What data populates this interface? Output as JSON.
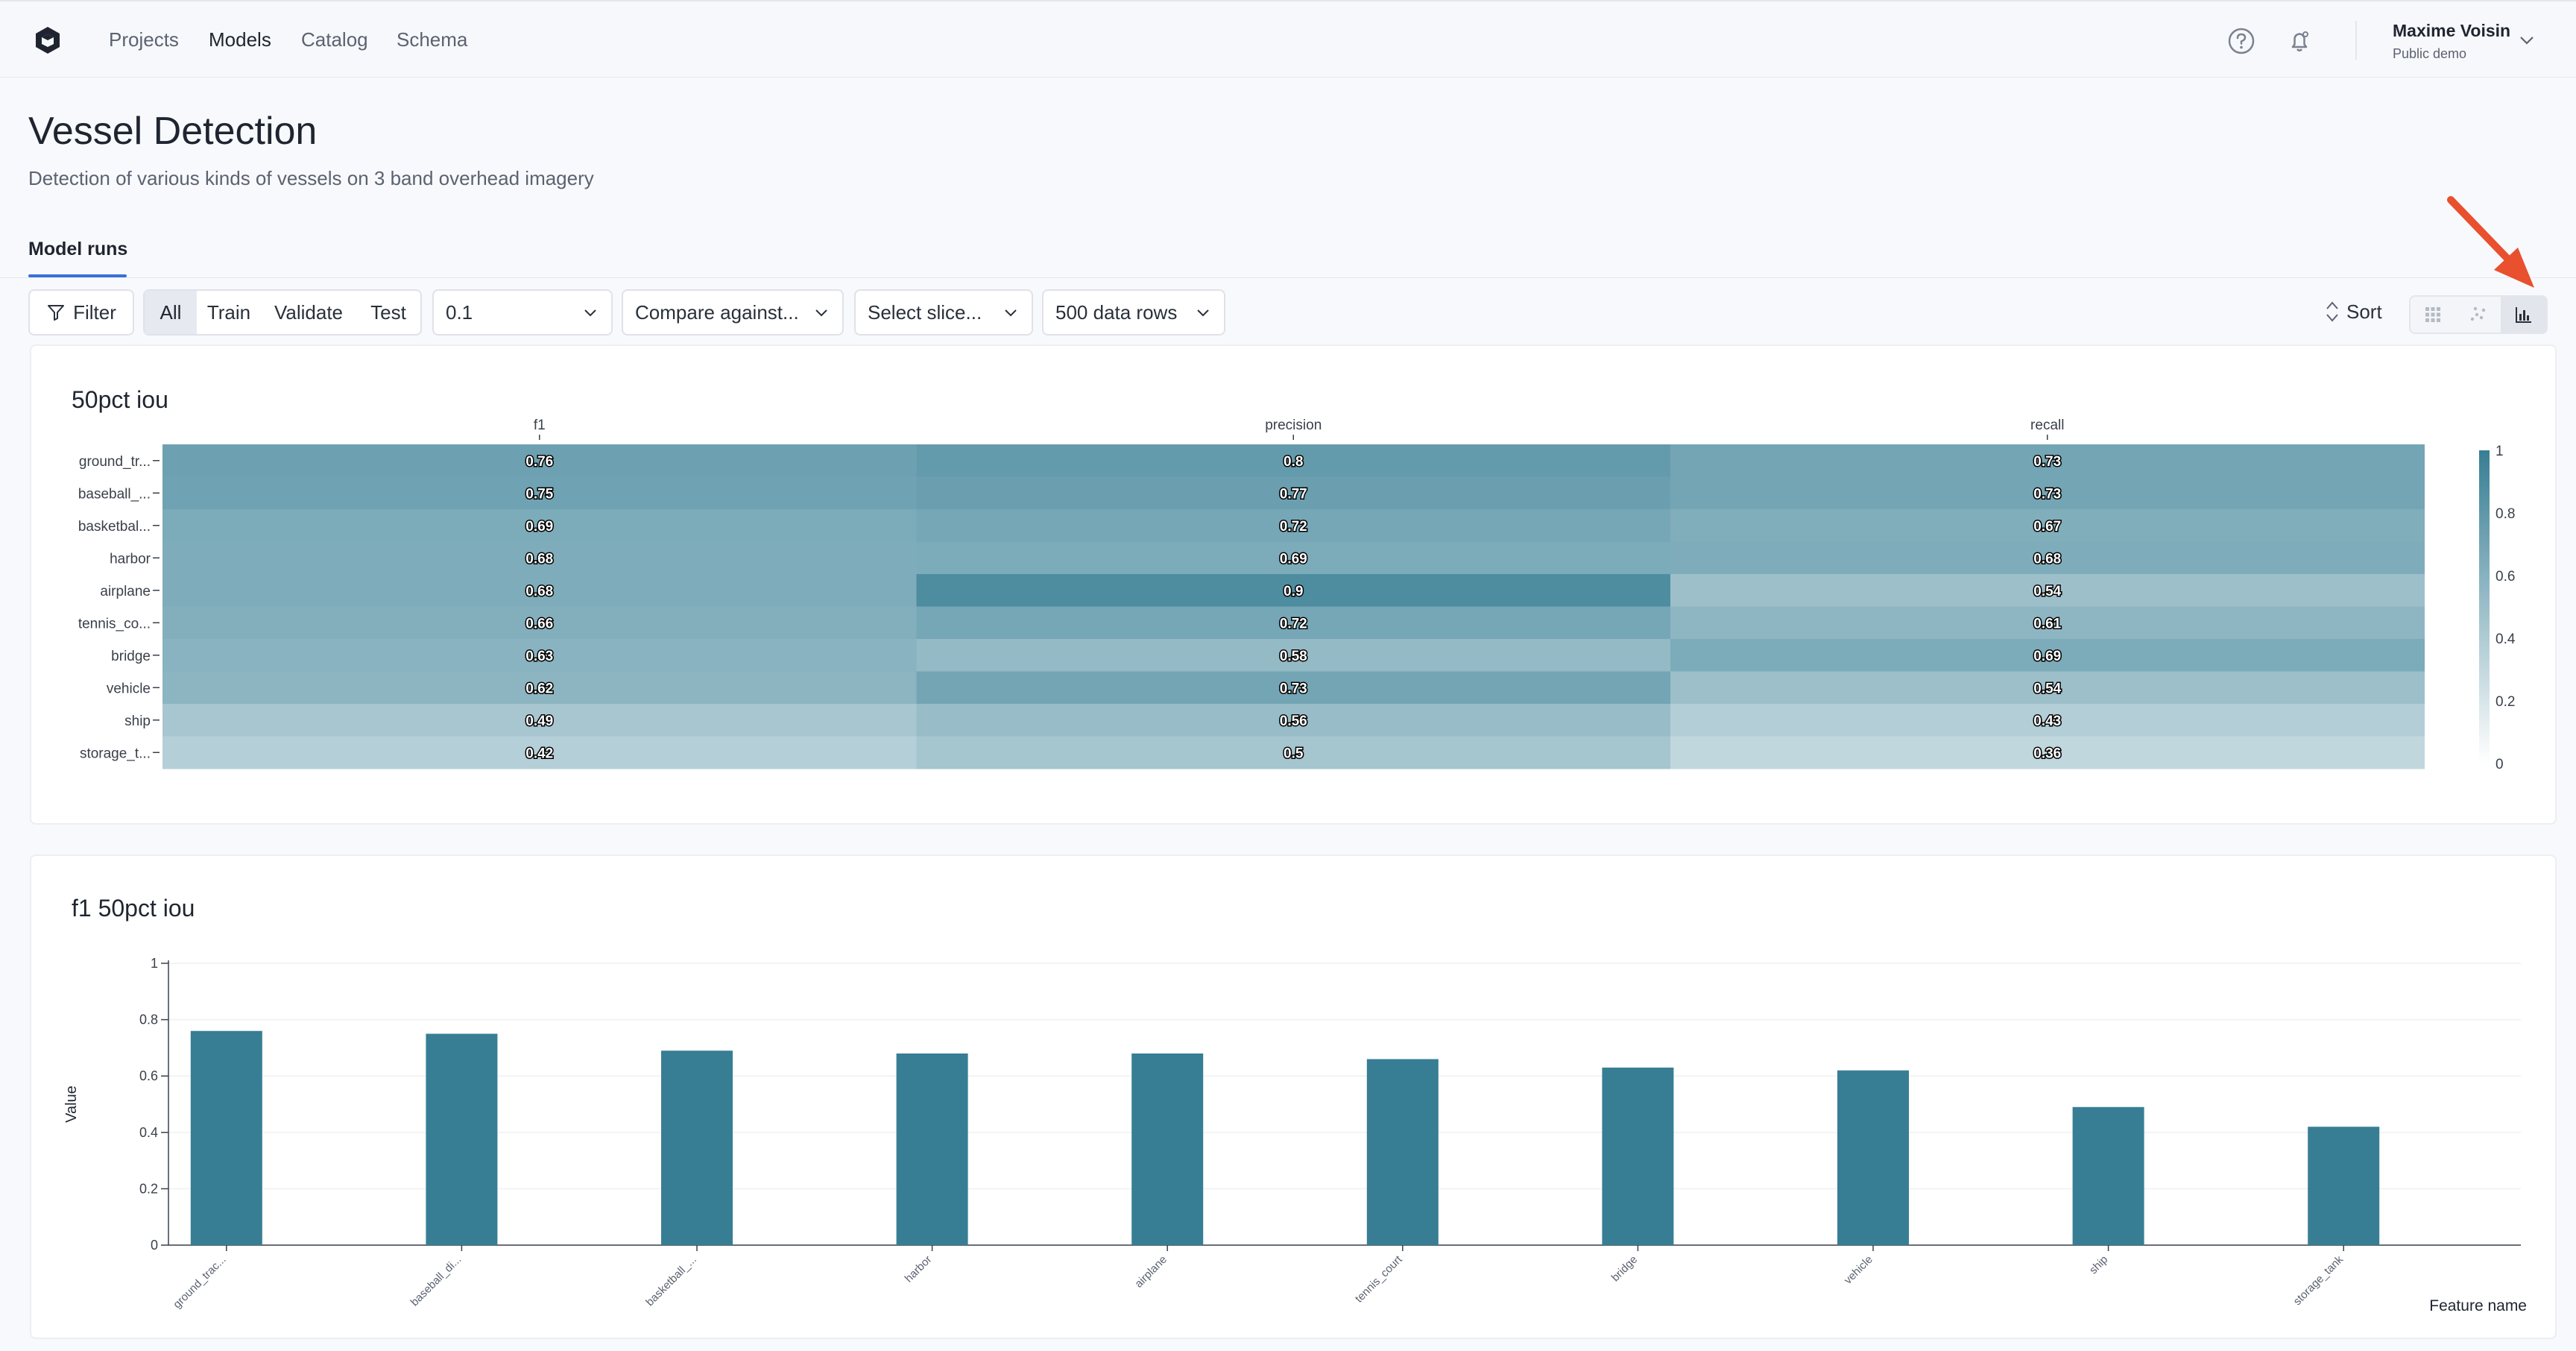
{
  "nav": {
    "links": [
      {
        "label": "Projects",
        "active": false
      },
      {
        "label": "Models",
        "active": true
      },
      {
        "label": "Catalog",
        "active": false
      },
      {
        "label": "Schema",
        "active": false
      }
    ],
    "user_name": "Maxime Voisin",
    "user_sub": "Public demo",
    "icons": [
      "logo-icon",
      "help-icon",
      "notification-bell-icon",
      "chevron-down-icon"
    ]
  },
  "header": {
    "title": "Vessel Detection",
    "subtitle": "Detection of various kinds of vessels on 3 band overhead imagery",
    "tab": "Model runs"
  },
  "toolbar": {
    "filter_label": "Filter",
    "splits": [
      "All",
      "Train",
      "Validate",
      "Test"
    ],
    "active_split": "All",
    "threshold_value": "0.1",
    "compare_placeholder": "Compare against...",
    "slice_placeholder": "Select slice...",
    "rows_value": "500 data rows",
    "sort_label": "Sort",
    "views": [
      "grid-view-icon",
      "scatter-view-icon",
      "bar-chart-view-icon"
    ],
    "active_view": "bar-chart-view-icon"
  },
  "colors": {
    "accent": "#3a6fd8",
    "bar": "#377e94",
    "heat_low": "#ffffff",
    "heat_high": "#377e94",
    "annotation_arrow": "#e8502e"
  },
  "chart_data": [
    {
      "type": "heatmap",
      "title": "50pct iou",
      "columns": [
        "f1",
        "precision",
        "recall"
      ],
      "rows": [
        "ground_tr...",
        "baseball_...",
        "basketbal...",
        "harbor",
        "airplane",
        "tennis_co...",
        "bridge",
        "vehicle",
        "ship",
        "storage_t..."
      ],
      "values": [
        [
          0.76,
          0.8,
          0.73
        ],
        [
          0.75,
          0.77,
          0.73
        ],
        [
          0.69,
          0.72,
          0.67
        ],
        [
          0.68,
          0.69,
          0.68
        ],
        [
          0.68,
          0.9,
          0.54
        ],
        [
          0.66,
          0.72,
          0.61
        ],
        [
          0.63,
          0.58,
          0.69
        ],
        [
          0.62,
          0.73,
          0.54
        ],
        [
          0.49,
          0.56,
          0.43
        ],
        [
          0.42,
          0.5,
          0.36
        ]
      ],
      "colorbar": {
        "range": [
          0,
          1
        ],
        "ticks": [
          "0",
          "0.2",
          "0.4",
          "0.6",
          "0.8",
          "1"
        ]
      }
    },
    {
      "type": "bar",
      "title": "f1 50pct iou",
      "categories": [
        "ground_trac...",
        "baseball_di...",
        "basketball_...",
        "harbor",
        "airplane",
        "tennis_court",
        "bridge",
        "vehicle",
        "ship",
        "storage_tank"
      ],
      "values": [
        0.76,
        0.75,
        0.69,
        0.68,
        0.68,
        0.66,
        0.63,
        0.62,
        0.49,
        0.42
      ],
      "xlabel": "Feature name",
      "ylabel": "Value",
      "ylim": [
        0,
        1
      ],
      "yticks": [
        "0",
        "0.2",
        "0.4",
        "0.6",
        "0.8",
        "1"
      ],
      "grid": true
    }
  ]
}
